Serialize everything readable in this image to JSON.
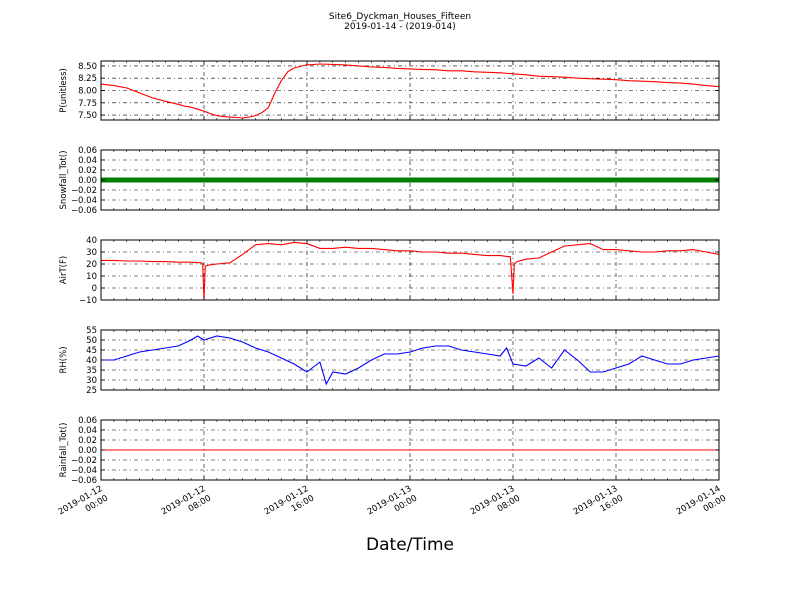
{
  "figure": {
    "title_line1": "Site6_Dyckman_Houses_Fifteen",
    "title_line2": "2019-01-14 - (2019-014)",
    "xlabel": "Date/Time"
  },
  "x_ticks": [
    {
      "d": "2019-01-12",
      "t": "00:00"
    },
    {
      "d": "2019-01-12",
      "t": "08:00"
    },
    {
      "d": "2019-01-12",
      "t": "16:00"
    },
    {
      "d": "2019-01-13",
      "t": "00:00"
    },
    {
      "d": "2019-01-13",
      "t": "08:00"
    },
    {
      "d": "2019-01-13",
      "t": "16:00"
    },
    {
      "d": "2019-01-14",
      "t": "00:00"
    }
  ],
  "chart_data": [
    {
      "type": "line",
      "ylabel": "P(unitless)",
      "ylim": [
        7.4,
        8.6
      ],
      "yticks": [
        "7.50",
        "7.75",
        "8.00",
        "8.25",
        "8.50"
      ],
      "grid": true,
      "color": "#ff0000",
      "series": [
        {
          "x": [
            0,
            1,
            2,
            3,
            4,
            5,
            6,
            6.5,
            7,
            7.5,
            8,
            8.5,
            9,
            9.5,
            10,
            10.5,
            11,
            11.5,
            12,
            12.5,
            13,
            13.5,
            14,
            14.5,
            15,
            16,
            17,
            18,
            19,
            20,
            21,
            22,
            23,
            24,
            25,
            26,
            27,
            28,
            29,
            30,
            31,
            32,
            33,
            34,
            35,
            36,
            37,
            38,
            39,
            40,
            41,
            42,
            43,
            44,
            45,
            46,
            47,
            48
          ],
          "values": [
            8.13,
            8.1,
            8.05,
            7.95,
            7.85,
            7.78,
            7.72,
            7.68,
            7.66,
            7.62,
            7.58,
            7.53,
            7.49,
            7.47,
            7.46,
            7.45,
            7.44,
            7.46,
            7.49,
            7.55,
            7.65,
            7.95,
            8.2,
            8.38,
            8.46,
            8.52,
            8.54,
            8.53,
            8.52,
            8.5,
            8.48,
            8.47,
            8.45,
            8.44,
            8.43,
            8.42,
            8.4,
            8.4,
            8.38,
            8.37,
            8.36,
            8.34,
            8.32,
            8.29,
            8.28,
            8.27,
            8.25,
            8.24,
            8.23,
            8.22,
            8.2,
            8.19,
            8.18,
            8.16,
            8.15,
            8.13,
            8.1,
            8.08
          ]
        }
      ]
    },
    {
      "type": "scatter",
      "ylabel": "Snowfall_Tot()",
      "ylim": [
        -0.06,
        0.06
      ],
      "yticks": [
        "0.06",
        "0.04",
        "0.02",
        "0.00",
        "−0.02",
        "−0.04",
        "−0.06"
      ],
      "grid": true,
      "color": "#008000",
      "series": [
        {
          "constant": 0.0
        }
      ]
    },
    {
      "type": "line",
      "ylabel": "AirT(F)",
      "ylim": [
        -10,
        40
      ],
      "yticks": [
        "40",
        "30",
        "20",
        "10",
        "0",
        "−10"
      ],
      "grid": true,
      "color": "#ff0000",
      "series": [
        {
          "x": [
            0,
            1,
            2,
            3,
            4,
            5,
            6,
            7,
            7.8,
            7.9,
            8,
            8.1,
            8.3,
            9,
            10,
            11,
            12,
            13,
            14,
            15,
            16,
            17,
            18,
            19,
            20,
            21,
            22,
            23,
            24,
            25,
            26,
            27,
            28,
            29,
            30,
            31,
            31.8,
            31.9,
            32,
            32.1,
            32.3,
            33,
            34,
            35,
            36,
            37,
            38,
            39,
            40,
            41,
            42,
            43,
            44,
            45,
            46,
            47,
            48
          ],
          "values": [
            23,
            23,
            22.5,
            22.5,
            22,
            22,
            21.5,
            21.5,
            21,
            20,
            -10,
            18,
            19,
            20,
            21,
            28,
            36,
            37,
            36,
            38,
            37,
            33,
            33,
            34,
            33,
            33,
            32,
            31,
            31,
            30,
            30,
            29,
            29,
            28,
            27,
            27,
            26,
            10,
            -5,
            20,
            22,
            24,
            25,
            30,
            35,
            36,
            37,
            32,
            32,
            31,
            30,
            30,
            31,
            31,
            32,
            30,
            28
          ]
        }
      ]
    },
    {
      "type": "line",
      "ylabel": "RH(%)",
      "ylim": [
        25,
        55
      ],
      "yticks": [
        "55",
        "50",
        "45",
        "40",
        "35",
        "30",
        "25"
      ],
      "grid": true,
      "color": "#0000ff",
      "series": [
        {
          "x": [
            0,
            1,
            2,
            3,
            4,
            5,
            6,
            7,
            7.5,
            8,
            9,
            10,
            11,
            12,
            13,
            14,
            15,
            16,
            17,
            17.5,
            18,
            19,
            20,
            21,
            22,
            23,
            24,
            25,
            26,
            27,
            28,
            29,
            30,
            31,
            31.5,
            32,
            33,
            34,
            35,
            36,
            37,
            38,
            39,
            40,
            41,
            42,
            43,
            44,
            45,
            46,
            47,
            48
          ],
          "values": [
            40,
            40,
            42,
            44,
            45,
            46,
            47,
            50,
            52,
            50,
            52,
            51,
            49,
            46,
            44,
            41,
            38,
            34,
            39,
            28,
            34,
            33,
            36,
            40,
            43,
            43,
            44,
            46,
            47,
            47,
            45,
            44,
            43,
            42,
            46,
            38,
            37,
            41,
            36,
            45,
            40,
            34,
            34,
            36,
            38,
            42,
            40,
            38,
            38,
            40,
            41,
            42
          ]
        }
      ]
    },
    {
      "type": "line",
      "ylabel": "Rainfall_Tot()",
      "ylim": [
        -0.06,
        0.06
      ],
      "yticks": [
        "0.06",
        "0.04",
        "0.02",
        "0.00",
        "−0.02",
        "−0.04",
        "−0.06"
      ],
      "grid": true,
      "color": "#ff0000",
      "series": [
        {
          "constant": 0.0
        }
      ]
    }
  ]
}
